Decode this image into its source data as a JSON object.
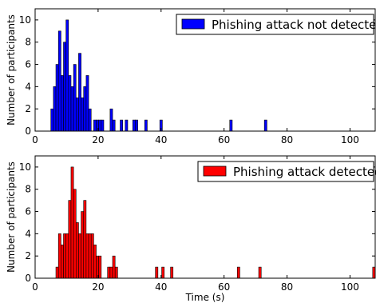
{
  "chart_data": [
    {
      "type": "bar",
      "xlim": [
        0,
        108
      ],
      "ylim": [
        0,
        11
      ],
      "xticks": [
        0,
        20,
        40,
        60,
        80,
        100
      ],
      "yticks": [
        0,
        2,
        4,
        6,
        8,
        10
      ],
      "ylabel": "Number of participants",
      "xlabel": "",
      "legend": {
        "label": "Phishing attack not detected",
        "placement": "top-right"
      },
      "bin_width": 0.8,
      "color": "#0000ff",
      "bars": [
        {
          "x": 5.0,
          "y": 2
        },
        {
          "x": 5.8,
          "y": 4
        },
        {
          "x": 6.6,
          "y": 6
        },
        {
          "x": 7.4,
          "y": 9
        },
        {
          "x": 8.2,
          "y": 5
        },
        {
          "x": 9.0,
          "y": 8
        },
        {
          "x": 9.8,
          "y": 10
        },
        {
          "x": 10.6,
          "y": 5
        },
        {
          "x": 11.4,
          "y": 4
        },
        {
          "x": 12.2,
          "y": 6
        },
        {
          "x": 13.0,
          "y": 3
        },
        {
          "x": 13.8,
          "y": 7
        },
        {
          "x": 14.6,
          "y": 3
        },
        {
          "x": 15.4,
          "y": 4
        },
        {
          "x": 16.2,
          "y": 5
        },
        {
          "x": 17.0,
          "y": 2
        },
        {
          "x": 18.6,
          "y": 1
        },
        {
          "x": 19.4,
          "y": 1
        },
        {
          "x": 20.2,
          "y": 1
        },
        {
          "x": 21.0,
          "y": 1
        },
        {
          "x": 23.8,
          "y": 2
        },
        {
          "x": 24.6,
          "y": 1
        },
        {
          "x": 27.0,
          "y": 1
        },
        {
          "x": 28.6,
          "y": 1
        },
        {
          "x": 31.0,
          "y": 1
        },
        {
          "x": 31.8,
          "y": 1
        },
        {
          "x": 34.8,
          "y": 1
        },
        {
          "x": 39.6,
          "y": 1
        },
        {
          "x": 61.8,
          "y": 1
        },
        {
          "x": 72.8,
          "y": 1
        }
      ]
    },
    {
      "type": "bar",
      "xlim": [
        0,
        108
      ],
      "ylim": [
        0,
        11
      ],
      "xticks": [
        0,
        20,
        40,
        60,
        80,
        100
      ],
      "yticks": [
        0,
        2,
        4,
        6,
        8,
        10
      ],
      "ylabel": "Number of participants",
      "xlabel": "Time (s)",
      "legend": {
        "label": "Phishing attack detected",
        "placement": "top-right"
      },
      "bin_width": 0.8,
      "color": "#ff0000",
      "bars": [
        {
          "x": 6.6,
          "y": 1
        },
        {
          "x": 7.4,
          "y": 4
        },
        {
          "x": 8.2,
          "y": 3
        },
        {
          "x": 9.0,
          "y": 4
        },
        {
          "x": 9.8,
          "y": 4
        },
        {
          "x": 10.6,
          "y": 7
        },
        {
          "x": 11.4,
          "y": 10
        },
        {
          "x": 12.2,
          "y": 8
        },
        {
          "x": 13.0,
          "y": 5
        },
        {
          "x": 13.8,
          "y": 4
        },
        {
          "x": 14.6,
          "y": 6
        },
        {
          "x": 15.4,
          "y": 7
        },
        {
          "x": 16.2,
          "y": 4
        },
        {
          "x": 17.0,
          "y": 4
        },
        {
          "x": 17.8,
          "y": 4
        },
        {
          "x": 18.6,
          "y": 3
        },
        {
          "x": 19.4,
          "y": 2
        },
        {
          "x": 20.2,
          "y": 2
        },
        {
          "x": 23.0,
          "y": 1
        },
        {
          "x": 23.8,
          "y": 1
        },
        {
          "x": 24.6,
          "y": 2
        },
        {
          "x": 25.4,
          "y": 1
        },
        {
          "x": 38.2,
          "y": 1
        },
        {
          "x": 40.2,
          "y": 1
        },
        {
          "x": 43.0,
          "y": 1
        },
        {
          "x": 64.2,
          "y": 1
        },
        {
          "x": 71.0,
          "y": 1
        },
        {
          "x": 107.2,
          "y": 1
        }
      ]
    }
  ]
}
